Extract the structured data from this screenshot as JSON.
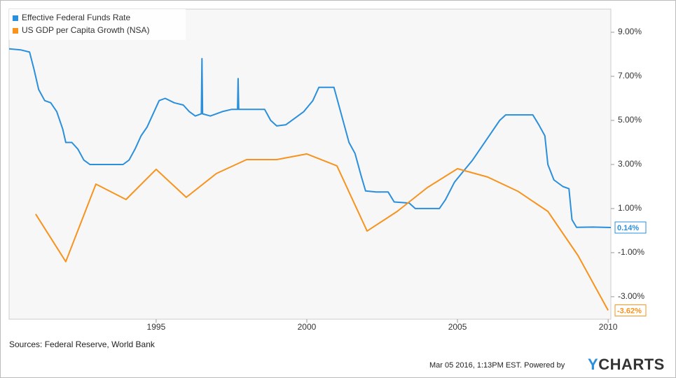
{
  "chart_data": {
    "type": "line",
    "series": [
      {
        "name": "Effective Federal Funds Rate",
        "color": "#2b8fdc",
        "x": [
          1990.12,
          1990.5,
          1990.8,
          1990.95,
          1991.1,
          1991.3,
          1991.5,
          1991.7,
          1991.9,
          1992.0,
          1992.2,
          1992.4,
          1992.6,
          1992.8,
          1993.0,
          1993.3,
          1993.6,
          1993.9,
          1994.1,
          1994.3,
          1994.5,
          1994.7,
          1994.9,
          1995.1,
          1995.3,
          1995.6,
          1995.9,
          1996.1,
          1996.3,
          1996.5,
          1996.52,
          1996.54,
          1996.8,
          1997.0,
          1997.2,
          1997.5,
          1997.7,
          1997.72,
          1997.74,
          1998.0,
          1998.3,
          1998.6,
          1998.8,
          1999.0,
          1999.3,
          1999.6,
          1999.9,
          2000.2,
          2000.4,
          2000.7,
          2000.9,
          2001.0,
          2001.2,
          2001.4,
          2001.6,
          2001.8,
          2001.95,
          2002.3,
          2002.7,
          2002.9,
          2003.4,
          2003.6,
          2004.0,
          2004.4,
          2004.6,
          2004.9,
          2005.2,
          2005.5,
          2005.8,
          2006.1,
          2006.4,
          2006.6,
          2007.0,
          2007.5,
          2007.7,
          2007.9,
          2008.0,
          2008.2,
          2008.5,
          2008.7,
          2008.8,
          2008.95,
          2009.5,
          2010.09
        ],
        "values": [
          8.25,
          8.2,
          8.1,
          7.3,
          6.4,
          5.9,
          5.8,
          5.4,
          4.6,
          4.0,
          4.0,
          3.7,
          3.2,
          3.0,
          3.0,
          3.0,
          3.0,
          3.0,
          3.2,
          3.7,
          4.3,
          4.7,
          5.3,
          5.9,
          6.0,
          5.8,
          5.7,
          5.4,
          5.2,
          5.3,
          7.8,
          5.3,
          5.2,
          5.3,
          5.4,
          5.5,
          5.5,
          6.9,
          5.5,
          5.5,
          5.5,
          5.5,
          5.0,
          4.75,
          4.8,
          5.1,
          5.4,
          5.9,
          6.5,
          6.5,
          6.5,
          6.0,
          5.0,
          4.0,
          3.5,
          2.5,
          1.8,
          1.75,
          1.75,
          1.3,
          1.25,
          1.0,
          1.0,
          1.0,
          1.4,
          2.2,
          2.7,
          3.2,
          3.8,
          4.4,
          5.0,
          5.25,
          5.25,
          5.25,
          4.8,
          4.3,
          3.0,
          2.3,
          2.0,
          1.9,
          0.5,
          0.15,
          0.16,
          0.14
        ],
        "end_label": {
          "value": 0.14,
          "label": "0.14%"
        }
      },
      {
        "name": "US GDP per Capita Growth (NSA)",
        "color": "#f7931e",
        "x": [
          1991,
          1992,
          1993,
          1994,
          1995,
          1996,
          1997,
          1998,
          1999,
          2000,
          2001,
          2002,
          2003,
          2004,
          2005,
          2006,
          2007,
          2008,
          2009,
          2010
        ],
        "values": [
          0.75,
          -1.41,
          2.11,
          1.41,
          2.78,
          1.51,
          2.59,
          3.22,
          3.22,
          3.48,
          2.94,
          -0.02,
          0.87,
          1.95,
          2.81,
          2.43,
          1.79,
          0.87,
          -1.13,
          -3.62
        ],
        "end_label": {
          "value": -3.62,
          "label": "-3.62%"
        }
      }
    ],
    "xlim": [
      1990.12,
      2010.09
    ],
    "xticks": [
      1995,
      2000,
      2005,
      2010
    ],
    "ylim": [
      -4.02,
      10.05
    ],
    "yticks": [
      {
        "value": -3,
        "label": "-3.00%"
      },
      {
        "value": -1,
        "label": "-1.00%"
      },
      {
        "value": 1,
        "label": "1.00%"
      },
      {
        "value": 3,
        "label": "3.00%"
      },
      {
        "value": 5,
        "label": "5.00%"
      },
      {
        "value": 7,
        "label": "7.00%"
      },
      {
        "value": 9,
        "label": "9.00%"
      }
    ],
    "grid": false,
    "legend": "top-left",
    "source_note": "Sources: Federal Reserve, World Bank",
    "timestamp": "Mar 05 2016, 1:13PM EST. Powered by",
    "brand": "YCHARTS"
  }
}
